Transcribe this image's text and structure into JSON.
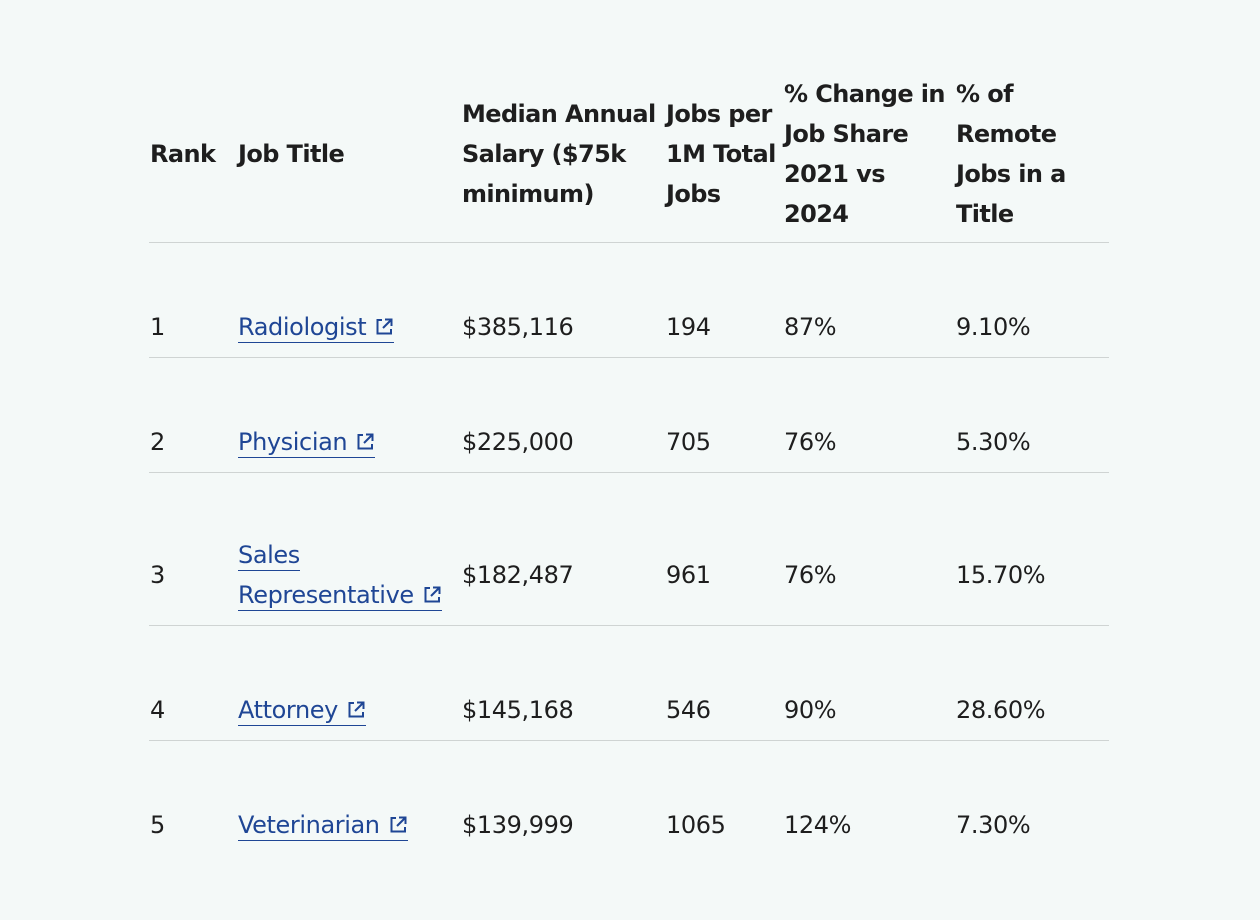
{
  "table": {
    "headers": {
      "rank": "Rank",
      "job_title": "Job Title",
      "salary": "Median Annual Salary ($75k minimum)",
      "jobs_per_million": "Jobs per 1M Total Jobs",
      "change": "% Change in Job Share 2021 vs 2024",
      "remote": "% of Remote Jobs in a Title"
    },
    "rows": [
      {
        "rank": "1",
        "title": "Radiologist",
        "salary": "$385,116",
        "jobs": "194",
        "change": "87%",
        "remote": "9.10%"
      },
      {
        "rank": "2",
        "title": "Physician",
        "salary": "$225,000",
        "jobs": "705",
        "change": "76%",
        "remote": "5.30%"
      },
      {
        "rank": "3",
        "title": "Sales Representative",
        "salary": "$182,487",
        "jobs": "961",
        "change": "76%",
        "remote": "15.70%"
      },
      {
        "rank": "4",
        "title": "Attorney",
        "salary": "$145,168",
        "jobs": "546",
        "change": "90%",
        "remote": "28.60%"
      },
      {
        "rank": "5",
        "title": "Veterinarian",
        "salary": "$139,999",
        "jobs": "1065",
        "change": "124%",
        "remote": "7.30%"
      }
    ]
  },
  "icons": {
    "external_link": "external-link-icon"
  },
  "colors": {
    "background": "#f4f9f8",
    "link": "#1f4695",
    "divider": "#cfd4d3",
    "text": "#1e1e1e"
  }
}
